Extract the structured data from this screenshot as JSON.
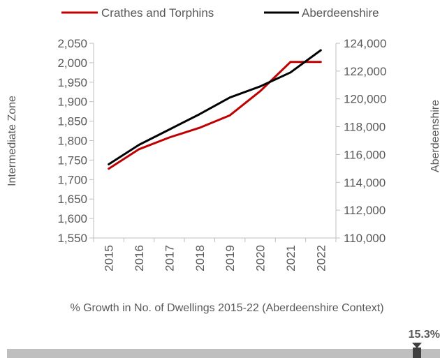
{
  "chart_data": {
    "type": "line",
    "categories": [
      "2015",
      "2016",
      "2017",
      "2018",
      "2019",
      "2020",
      "2021",
      "2022"
    ],
    "series": [
      {
        "name": "Crathes and Torphins",
        "axis": "left",
        "color": "#c00000",
        "values": [
          1728,
          1778,
          1808,
          1833,
          1865,
          1927,
          2002,
          2002
        ]
      },
      {
        "name": "Aberdeenshire",
        "axis": "right",
        "color": "#000000",
        "values": [
          115300,
          116700,
          117800,
          118900,
          120100,
          120900,
          121900,
          123500
        ]
      }
    ],
    "ylabel": "Intermediate Zone",
    "y2label": "Aberdeenshire",
    "ylim": [
      1550,
      2050
    ],
    "y2lim": [
      110000,
      124000
    ],
    "yticks": [
      "1,550",
      "1,600",
      "1,650",
      "1,700",
      "1,750",
      "1,800",
      "1,850",
      "1,900",
      "1,950",
      "2,000",
      "2,050"
    ],
    "y2ticks": [
      "110,000",
      "112,000",
      "114,000",
      "116,000",
      "118,000",
      "120,000",
      "122,000",
      "124,000"
    ],
    "grid": false,
    "legend_position": "top"
  },
  "growth": {
    "caption": "% Growth in No. of Dwellings 2015-22 (Aberdeenshire Context)",
    "marker_label": "15.3%",
    "bar_color": "#bfbfbf",
    "marker_color": "#404040"
  }
}
